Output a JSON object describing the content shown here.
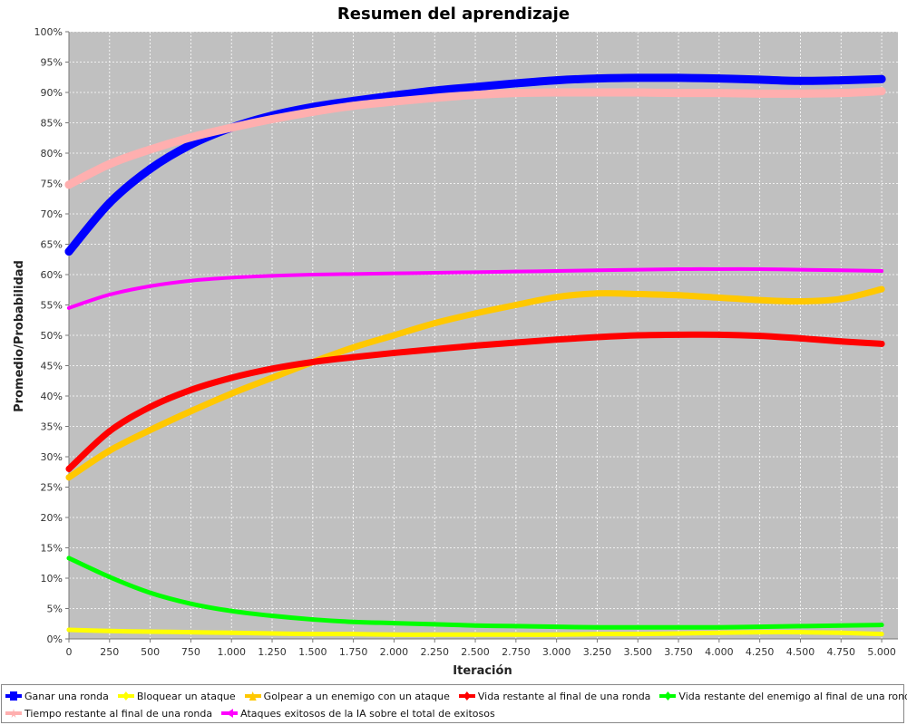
{
  "chart_data": {
    "type": "line",
    "title": "Resumen del aprendizaje",
    "xlabel": "Iteración",
    "ylabel": "Promedio/Probabilidad",
    "xlim": [
      0,
      5100
    ],
    "ylim": [
      0,
      100
    ],
    "x_ticks": [
      0,
      250,
      500,
      750,
      1000,
      1250,
      1500,
      1750,
      2000,
      2250,
      2500,
      2750,
      3000,
      3250,
      3500,
      3750,
      4000,
      4250,
      4500,
      4750,
      5000
    ],
    "x_tick_labels": [
      "0",
      "250",
      "500",
      "750",
      "1.000",
      "1.250",
      "1.500",
      "1.750",
      "2.000",
      "2.250",
      "2.500",
      "2.750",
      "3.000",
      "3.250",
      "3.500",
      "3.750",
      "4.000",
      "4.250",
      "4.500",
      "4.750",
      "5.000"
    ],
    "y_ticks": [
      0,
      5,
      10,
      15,
      20,
      25,
      30,
      35,
      40,
      45,
      50,
      55,
      60,
      65,
      70,
      75,
      80,
      85,
      90,
      95,
      100
    ],
    "y_tick_labels": [
      "0%",
      "5%",
      "10%",
      "15%",
      "20%",
      "25%",
      "30%",
      "35%",
      "40%",
      "45%",
      "50%",
      "55%",
      "60%",
      "65%",
      "70%",
      "75%",
      "80%",
      "85%",
      "90%",
      "95%",
      "100%"
    ],
    "grid": true,
    "background": "#c0c0c0",
    "legend_position": "bottom",
    "x": [
      0,
      250,
      500,
      750,
      1000,
      1250,
      1500,
      1750,
      2000,
      2250,
      2500,
      2750,
      3000,
      3250,
      3500,
      3750,
      4000,
      4250,
      4500,
      4750,
      5000
    ],
    "series": [
      {
        "name": "Ganar una ronda",
        "color": "#0000ff",
        "marker": "square",
        "width": 9,
        "values": [
          63.8,
          71.8,
          77.4,
          81.4,
          84.2,
          86.2,
          87.6,
          88.6,
          89.5,
          90.3,
          90.9,
          91.5,
          92.0,
          92.3,
          92.4,
          92.4,
          92.3,
          92.1,
          91.9,
          92.0,
          92.2
        ]
      },
      {
        "name": "Bloquear un ataque",
        "color": "#ffff00",
        "marker": "diamond",
        "width": 5,
        "values": [
          1.5,
          1.3,
          1.2,
          1.1,
          1.0,
          0.9,
          0.8,
          0.8,
          0.7,
          0.7,
          0.7,
          0.7,
          0.7,
          0.8,
          0.8,
          0.9,
          1.0,
          1.1,
          1.1,
          1.0,
          0.8
        ]
      },
      {
        "name": "Golpear a un enemigo con un ataque",
        "color": "#ffc800",
        "marker": "triangle",
        "width": 7,
        "values": [
          26.6,
          31.0,
          34.4,
          37.5,
          40.4,
          43.0,
          45.6,
          48.0,
          50.0,
          52.0,
          53.6,
          55.0,
          56.3,
          56.9,
          56.8,
          56.6,
          56.2,
          55.8,
          55.6,
          56.0,
          57.6
        ]
      },
      {
        "name": "Vida restante al final de una ronda",
        "color": "#ff0000",
        "marker": "diamond",
        "width": 7,
        "values": [
          28.0,
          34.2,
          38.2,
          41.0,
          43.0,
          44.5,
          45.6,
          46.4,
          47.1,
          47.7,
          48.3,
          48.8,
          49.3,
          49.7,
          50.0,
          50.1,
          50.1,
          49.9,
          49.5,
          49.0,
          48.6
        ]
      },
      {
        "name": "Vida restante del enemigo al final de una ronda",
        "color": "#00ff00",
        "marker": "diamond",
        "width": 5,
        "values": [
          13.3,
          10.2,
          7.6,
          5.8,
          4.6,
          3.8,
          3.2,
          2.8,
          2.6,
          2.4,
          2.2,
          2.1,
          2.0,
          1.9,
          1.9,
          1.9,
          1.9,
          2.0,
          2.1,
          2.2,
          2.3
        ]
      },
      {
        "name": "Tiempo restante al final de una ronda",
        "color": "#ffafaf",
        "marker": "star",
        "width": 9,
        "values": [
          74.8,
          78.2,
          80.6,
          82.6,
          84.2,
          85.6,
          86.8,
          87.8,
          88.5,
          89.1,
          89.6,
          89.9,
          90.0,
          90.0,
          90.0,
          89.9,
          89.9,
          89.8,
          89.8,
          89.9,
          90.2
        ]
      },
      {
        "name": "Ataques exitosos de la IA sobre el total de exitosos",
        "color": "#ff00ff",
        "marker": "arrow",
        "width": 4,
        "values": [
          54.5,
          56.7,
          58.1,
          59.0,
          59.5,
          59.8,
          60.0,
          60.1,
          60.2,
          60.3,
          60.4,
          60.5,
          60.6,
          60.7,
          60.8,
          60.9,
          60.9,
          60.9,
          60.8,
          60.7,
          60.6
        ]
      }
    ]
  }
}
